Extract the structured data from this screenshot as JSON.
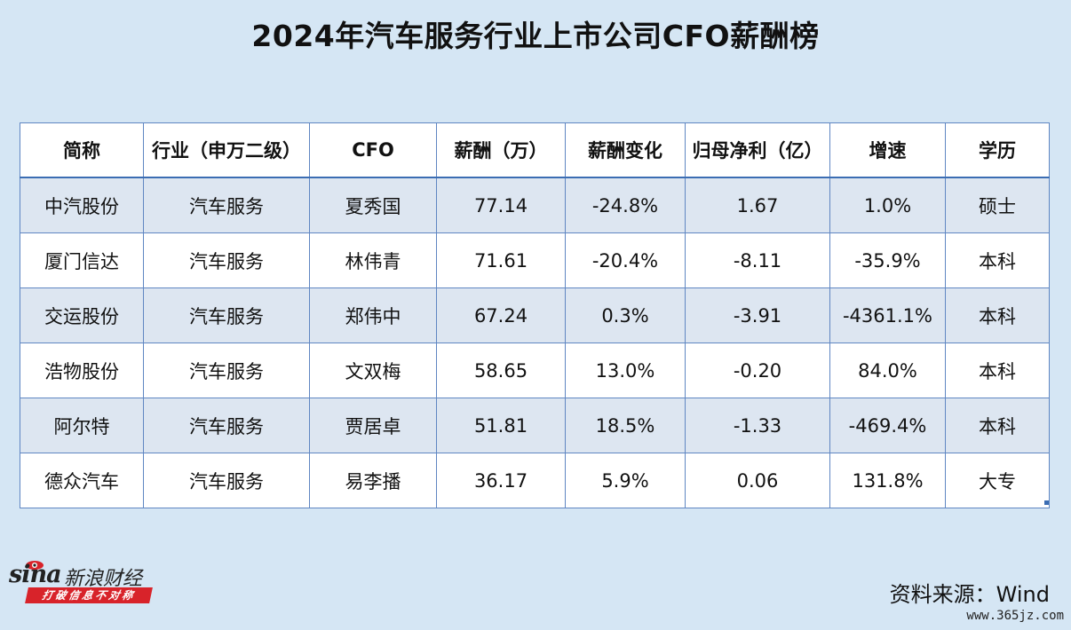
{
  "title": "2024年汽车服务行业上市公司CFO薪酬榜",
  "table": {
    "headers": [
      "简称",
      "行业（申万二级）",
      "CFO",
      "薪酬（万）",
      "薪酬变化",
      "归母净利（亿）",
      "增速",
      "学历"
    ],
    "rows": [
      [
        "中汽股份",
        "汽车服务",
        "夏秀国",
        "77.14",
        "-24.8%",
        "1.67",
        "1.0%",
        "硕士"
      ],
      [
        "厦门信达",
        "汽车服务",
        "林伟青",
        "71.61",
        "-20.4%",
        "-8.11",
        "-35.9%",
        "本科"
      ],
      [
        "交运股份",
        "汽车服务",
        "郑伟中",
        "67.24",
        "0.3%",
        "-3.91",
        "-4361.1%",
        "本科"
      ],
      [
        "浩物股份",
        "汽车服务",
        "文双梅",
        "58.65",
        "13.0%",
        "-0.20",
        "84.0%",
        "本科"
      ],
      [
        "阿尔特",
        "汽车服务",
        "贾居卓",
        "51.81",
        "18.5%",
        "-1.33",
        "-469.4%",
        "本科"
      ],
      [
        "德众汽车",
        "汽车服务",
        "易李播",
        "36.17",
        "5.9%",
        "0.06",
        "131.8%",
        "大专"
      ]
    ]
  },
  "logo": {
    "wordmark": "sina",
    "brand": "新浪财经",
    "slogan": "打破信息不对称",
    "icon": "sina-eye-logo"
  },
  "source": "资料来源：Wind",
  "watermark": "www.365jz.com",
  "colors": {
    "background": "#d5e6f4",
    "row_alt": "#dde6f1",
    "grid": "#5f86c2",
    "slogan_bg": "#d8232a"
  }
}
